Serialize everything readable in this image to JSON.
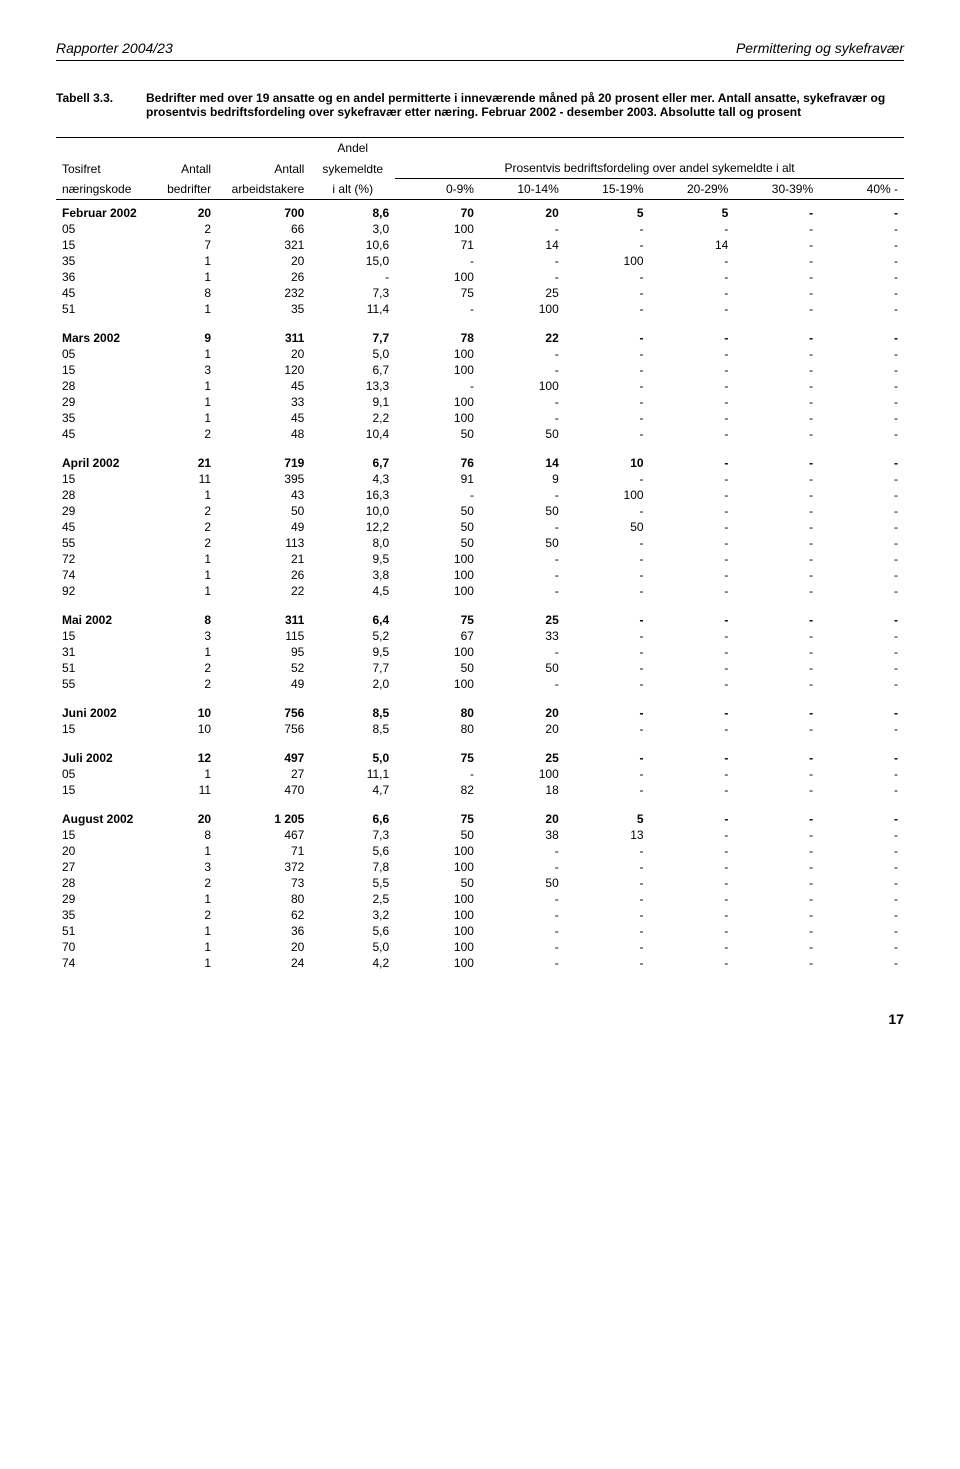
{
  "header": {
    "left": "Rapporter 2004/23",
    "right": "Permittering og sykefravær"
  },
  "caption": {
    "label": "Tabell 3.3.",
    "text": "Bedrifter med over 19 ansatte og en andel permitterte i inneværende måned på 20 prosent eller mer. Antall ansatte, sykefravær og prosentvis bedriftsfordeling over sykefravær etter næring. Februar 2002 - desember 2003. Absolutte tall og prosent"
  },
  "columns": {
    "col1_top": "Tosifret",
    "col1_bot": "næringskode",
    "col2_top": "Antall",
    "col2_bot": "bedrifter",
    "col3_top": "Antall",
    "col3_bot": "arbeidstakere",
    "col4_top": "sykemeldte",
    "col4_mid": "Andel",
    "col4_bot": "i alt (%)",
    "span_header": "Prosentvis bedriftsfordeling over andel sykemeldte i alt",
    "pct_cols": [
      "0-9%",
      "10-14%",
      "15-19%",
      "20-29%",
      "30-39%",
      "40% -"
    ]
  },
  "sections": [
    {
      "title": "Februar 2002",
      "head": [
        "20",
        "700",
        "8,6",
        "70",
        "20",
        "5",
        "5",
        "-",
        "-"
      ],
      "rows": [
        [
          "05",
          "2",
          "66",
          "3,0",
          "100",
          "-",
          "-",
          "-",
          "-",
          "-"
        ],
        [
          "15",
          "7",
          "321",
          "10,6",
          "71",
          "14",
          "-",
          "14",
          "-",
          "-"
        ],
        [
          "35",
          "1",
          "20",
          "15,0",
          "-",
          "-",
          "100",
          "-",
          "-",
          "-"
        ],
        [
          "36",
          "1",
          "26",
          "-",
          "100",
          "-",
          "-",
          "-",
          "-",
          "-"
        ],
        [
          "45",
          "8",
          "232",
          "7,3",
          "75",
          "25",
          "-",
          "-",
          "-",
          "-"
        ],
        [
          "51",
          "1",
          "35",
          "11,4",
          "-",
          "100",
          "-",
          "-",
          "-",
          "-"
        ]
      ]
    },
    {
      "title": "Mars 2002",
      "head": [
        "9",
        "311",
        "7,7",
        "78",
        "22",
        "-",
        "-",
        "-",
        "-"
      ],
      "rows": [
        [
          "05",
          "1",
          "20",
          "5,0",
          "100",
          "-",
          "-",
          "-",
          "-",
          "-"
        ],
        [
          "15",
          "3",
          "120",
          "6,7",
          "100",
          "-",
          "-",
          "-",
          "-",
          "-"
        ],
        [
          "28",
          "1",
          "45",
          "13,3",
          "-",
          "100",
          "-",
          "-",
          "-",
          "-"
        ],
        [
          "29",
          "1",
          "33",
          "9,1",
          "100",
          "-",
          "-",
          "-",
          "-",
          "-"
        ],
        [
          "35",
          "1",
          "45",
          "2,2",
          "100",
          "-",
          "-",
          "-",
          "-",
          "-"
        ],
        [
          "45",
          "2",
          "48",
          "10,4",
          "50",
          "50",
          "-",
          "-",
          "-",
          "-"
        ]
      ]
    },
    {
      "title": "April 2002",
      "head": [
        "21",
        "719",
        "6,7",
        "76",
        "14",
        "10",
        "-",
        "-",
        "-"
      ],
      "rows": [
        [
          "15",
          "11",
          "395",
          "4,3",
          "91",
          "9",
          "-",
          "-",
          "-",
          "-"
        ],
        [
          "28",
          "1",
          "43",
          "16,3",
          "-",
          "-",
          "100",
          "-",
          "-",
          "-"
        ],
        [
          "29",
          "2",
          "50",
          "10,0",
          "50",
          "50",
          "-",
          "-",
          "-",
          "-"
        ],
        [
          "45",
          "2",
          "49",
          "12,2",
          "50",
          "-",
          "50",
          "-",
          "-",
          "-"
        ],
        [
          "55",
          "2",
          "113",
          "8,0",
          "50",
          "50",
          "-",
          "-",
          "-",
          "-"
        ],
        [
          "72",
          "1",
          "21",
          "9,5",
          "100",
          "-",
          "-",
          "-",
          "-",
          "-"
        ],
        [
          "74",
          "1",
          "26",
          "3,8",
          "100",
          "-",
          "-",
          "-",
          "-",
          "-"
        ],
        [
          "92",
          "1",
          "22",
          "4,5",
          "100",
          "-",
          "-",
          "-",
          "-",
          "-"
        ]
      ]
    },
    {
      "title": "Mai 2002",
      "head": [
        "8",
        "311",
        "6,4",
        "75",
        "25",
        "-",
        "-",
        "-",
        "-"
      ],
      "rows": [
        [
          "15",
          "3",
          "115",
          "5,2",
          "67",
          "33",
          "-",
          "-",
          "-",
          "-"
        ],
        [
          "31",
          "1",
          "95",
          "9,5",
          "100",
          "-",
          "-",
          "-",
          "-",
          "-"
        ],
        [
          "51",
          "2",
          "52",
          "7,7",
          "50",
          "50",
          "-",
          "-",
          "-",
          "-"
        ],
        [
          "55",
          "2",
          "49",
          "2,0",
          "100",
          "-",
          "-",
          "-",
          "-",
          "-"
        ]
      ]
    },
    {
      "title": "Juni 2002",
      "head": [
        "10",
        "756",
        "8,5",
        "80",
        "20",
        "-",
        "-",
        "-",
        "-"
      ],
      "rows": [
        [
          "15",
          "10",
          "756",
          "8,5",
          "80",
          "20",
          "-",
          "-",
          "-",
          "-"
        ]
      ]
    },
    {
      "title": "Juli 2002",
      "head": [
        "12",
        "497",
        "5,0",
        "75",
        "25",
        "-",
        "-",
        "-",
        "-"
      ],
      "rows": [
        [
          "05",
          "1",
          "27",
          "11,1",
          "-",
          "100",
          "-",
          "-",
          "-",
          "-"
        ],
        [
          "15",
          "11",
          "470",
          "4,7",
          "82",
          "18",
          "-",
          "-",
          "-",
          "-"
        ]
      ]
    },
    {
      "title": "August 2002",
      "head": [
        "20",
        "1 205",
        "6,6",
        "75",
        "20",
        "5",
        "-",
        "-",
        "-"
      ],
      "rows": [
        [
          "15",
          "8",
          "467",
          "7,3",
          "50",
          "38",
          "13",
          "-",
          "-",
          "-"
        ],
        [
          "20",
          "1",
          "71",
          "5,6",
          "100",
          "-",
          "-",
          "-",
          "-",
          "-"
        ],
        [
          "27",
          "3",
          "372",
          "7,8",
          "100",
          "-",
          "-",
          "-",
          "-",
          "-"
        ],
        [
          "28",
          "2",
          "73",
          "5,5",
          "50",
          "50",
          "-",
          "-",
          "-",
          "-"
        ],
        [
          "29",
          "1",
          "80",
          "2,5",
          "100",
          "-",
          "-",
          "-",
          "-",
          "-"
        ],
        [
          "35",
          "2",
          "62",
          "3,2",
          "100",
          "-",
          "-",
          "-",
          "-",
          "-"
        ],
        [
          "51",
          "1",
          "36",
          "5,6",
          "100",
          "-",
          "-",
          "-",
          "-",
          "-"
        ],
        [
          "70",
          "1",
          "20",
          "5,0",
          "100",
          "-",
          "-",
          "-",
          "-",
          "-"
        ],
        [
          "74",
          "1",
          "24",
          "4,2",
          "100",
          "-",
          "-",
          "-",
          "-",
          "-"
        ]
      ]
    }
  ],
  "pageNumber": "17"
}
